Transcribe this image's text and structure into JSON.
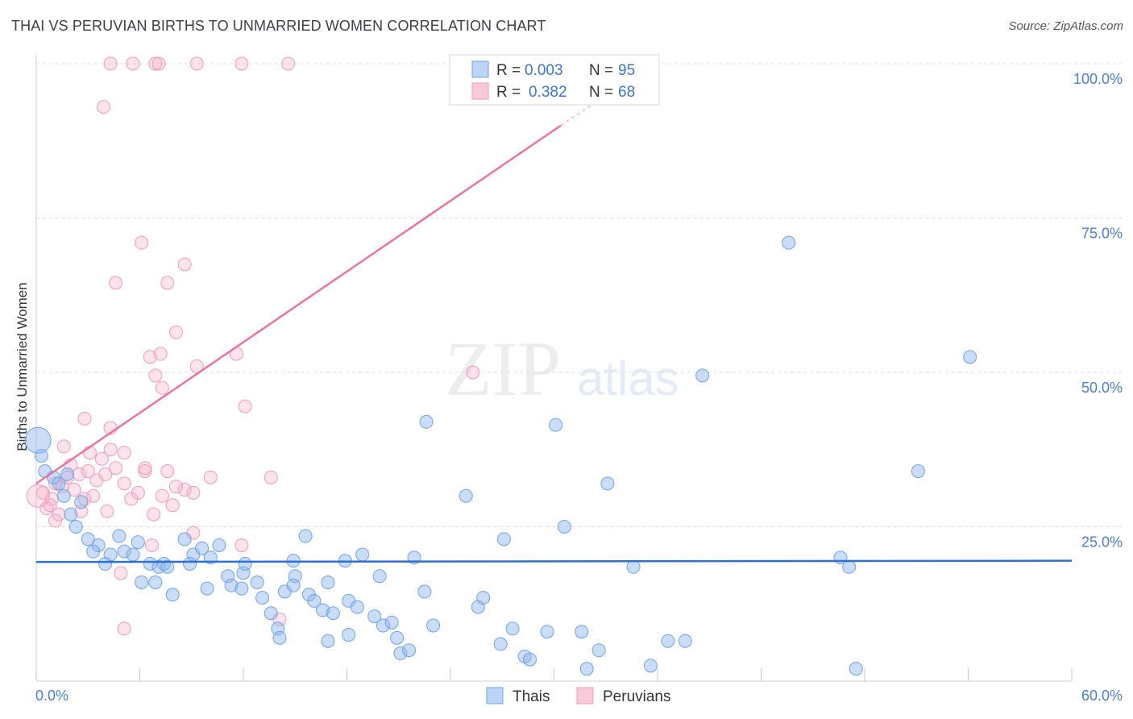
{
  "chart_data": {
    "type": "scatter",
    "title": "THAI VS PERUVIAN BIRTHS TO UNMARRIED WOMEN CORRELATION CHART",
    "source": "Source: ZipAtlas.com",
    "xlabel": "",
    "ylabel": "Births to Unmarried Women",
    "xlim": [
      0,
      60
    ],
    "ylim": [
      0,
      100
    ],
    "x_tick_labels": [
      "0.0%",
      "60.0%"
    ],
    "y_tick_labels": [
      "100.0%",
      "75.0%",
      "50.0%",
      "25.0%"
    ],
    "y_tick_values": [
      100,
      75,
      50,
      25
    ],
    "grid": true,
    "watermark": "ZIPatlas",
    "colors": {
      "thais": "#6fa3e8",
      "peruvians": "#f29ab8",
      "thais_line": "#2f6fcf",
      "peruvians_line": "#e8759c",
      "tick_text": "#4a7fd1"
    },
    "legend": {
      "position": "top-center",
      "entries": [
        {
          "series": "Thais",
          "r_label": "R =",
          "r_value": "0.003",
          "n_label": "N =",
          "n_value": "95"
        },
        {
          "series": "Peruvians",
          "r_label": "R =",
          "r_value": "0.382",
          "n_label": "N =",
          "n_value": "68"
        }
      ]
    },
    "bottom_legend": [
      "Thais",
      "Peruvians"
    ],
    "series": [
      {
        "name": "Thais",
        "trend": {
          "x": [
            0,
            60
          ],
          "y": [
            19.3,
            19.5
          ]
        },
        "points": [
          [
            0.3,
            36.5
          ],
          [
            0.5,
            34.0
          ],
          [
            1.0,
            33.0
          ],
          [
            1.3,
            32.0
          ],
          [
            1.6,
            30.0
          ],
          [
            1.8,
            33.5
          ],
          [
            2.0,
            27.0
          ],
          [
            2.6,
            29.0
          ],
          [
            2.3,
            25.0
          ],
          [
            3.0,
            23.0
          ],
          [
            3.6,
            22.0
          ],
          [
            3.3,
            21.0
          ],
          [
            4.3,
            20.5
          ],
          [
            4.0,
            19.0
          ],
          [
            4.8,
            23.5
          ],
          [
            5.1,
            21.0
          ],
          [
            5.6,
            20.5
          ],
          [
            5.9,
            22.5
          ],
          [
            6.6,
            19.0
          ],
          [
            7.1,
            18.5
          ],
          [
            7.4,
            19.0
          ],
          [
            7.6,
            18.5
          ],
          [
            8.6,
            23.0
          ],
          [
            9.1,
            20.5
          ],
          [
            9.6,
            21.5
          ],
          [
            10.1,
            20.0
          ],
          [
            10.6,
            22.0
          ],
          [
            11.1,
            17.0
          ],
          [
            11.3,
            15.5
          ],
          [
            12.0,
            17.5
          ],
          [
            12.8,
            16.0
          ],
          [
            13.1,
            13.5
          ],
          [
            13.6,
            11.0
          ],
          [
            14.0,
            8.5
          ],
          [
            14.9,
            19.5
          ],
          [
            14.4,
            14.5
          ],
          [
            15.0,
            17.0
          ],
          [
            15.6,
            23.5
          ],
          [
            15.8,
            14.0
          ],
          [
            16.1,
            13.0
          ],
          [
            16.6,
            11.5
          ],
          [
            17.2,
            11.0
          ],
          [
            17.9,
            19.5
          ],
          [
            18.1,
            13.0
          ],
          [
            18.6,
            12.0
          ],
          [
            18.1,
            7.5
          ],
          [
            18.9,
            20.5
          ],
          [
            19.6,
            10.5
          ],
          [
            20.1,
            9.0
          ],
          [
            20.6,
            9.5
          ],
          [
            20.9,
            7.0
          ],
          [
            21.1,
            4.5
          ],
          [
            21.6,
            5.0
          ],
          [
            22.5,
            14.5
          ],
          [
            23.0,
            9.0
          ],
          [
            22.6,
            42.0
          ],
          [
            25.6,
            12.0
          ],
          [
            25.9,
            13.5
          ],
          [
            27.1,
            23.0
          ],
          [
            27.6,
            8.5
          ],
          [
            28.3,
            4.0
          ],
          [
            28.6,
            3.5
          ],
          [
            29.6,
            8.0
          ],
          [
            30.6,
            25.0
          ],
          [
            30.1,
            41.5
          ],
          [
            31.6,
            8.0
          ],
          [
            32.6,
            5.0
          ],
          [
            33.1,
            32.0
          ],
          [
            34.6,
            18.5
          ],
          [
            35.6,
            2.5
          ],
          [
            36.6,
            6.5
          ],
          [
            37.6,
            6.5
          ],
          [
            38.6,
            49.5
          ],
          [
            43.6,
            71.0
          ],
          [
            46.6,
            20.0
          ],
          [
            47.1,
            18.5
          ],
          [
            47.5,
            2.0
          ],
          [
            51.1,
            34.0
          ],
          [
            54.1,
            52.5
          ],
          [
            6.1,
            16.0
          ],
          [
            6.9,
            16.0
          ],
          [
            7.9,
            14.0
          ],
          [
            9.9,
            15.0
          ],
          [
            11.9,
            15.0
          ],
          [
            14.9,
            15.5
          ],
          [
            16.9,
            16.0
          ],
          [
            19.9,
            17.0
          ],
          [
            21.9,
            20.0
          ],
          [
            24.9,
            30.0
          ],
          [
            8.9,
            19.0
          ],
          [
            12.1,
            19.0
          ],
          [
            14.1,
            7.0
          ],
          [
            16.9,
            6.5
          ],
          [
            26.9,
            6.0
          ],
          [
            31.9,
            2.0
          ]
        ]
      },
      {
        "name": "Peruvians",
        "trend": {
          "x": [
            0,
            30.4
          ],
          "y": [
            32.0,
            90.0
          ]
        },
        "trend_dashed": {
          "x": [
            30.4,
            33.1
          ],
          "y": [
            90.0,
            95.0
          ]
        },
        "points": [
          [
            0.4,
            30.5
          ],
          [
            0.6,
            28.0
          ],
          [
            0.9,
            29.5
          ],
          [
            1.1,
            32.0
          ],
          [
            1.3,
            27.0
          ],
          [
            1.5,
            31.5
          ],
          [
            1.8,
            33.0
          ],
          [
            2.0,
            35.0
          ],
          [
            2.2,
            31.0
          ],
          [
            2.5,
            33.5
          ],
          [
            2.8,
            29.5
          ],
          [
            3.0,
            34.0
          ],
          [
            3.3,
            30.0
          ],
          [
            3.5,
            32.5
          ],
          [
            3.8,
            36.0
          ],
          [
            4.0,
            33.5
          ],
          [
            4.3,
            37.5
          ],
          [
            4.6,
            34.5
          ],
          [
            5.1,
            32.0
          ],
          [
            5.5,
            29.5
          ],
          [
            5.9,
            30.5
          ],
          [
            6.3,
            34.0
          ],
          [
            6.8,
            27.0
          ],
          [
            7.3,
            30.0
          ],
          [
            7.9,
            28.5
          ],
          [
            8.6,
            31.0
          ],
          [
            9.1,
            24.0
          ],
          [
            1.6,
            38.0
          ],
          [
            2.8,
            42.5
          ],
          [
            3.1,
            37.0
          ],
          [
            4.3,
            41.0
          ],
          [
            5.1,
            37.0
          ],
          [
            6.3,
            34.5
          ],
          [
            7.6,
            34.0
          ],
          [
            6.6,
            52.5
          ],
          [
            7.2,
            53.0
          ],
          [
            6.9,
            49.5
          ],
          [
            7.3,
            47.5
          ],
          [
            8.1,
            56.5
          ],
          [
            9.3,
            51.0
          ],
          [
            11.6,
            53.0
          ],
          [
            12.1,
            44.5
          ],
          [
            13.6,
            33.0
          ],
          [
            14.1,
            10.0
          ],
          [
            4.6,
            64.5
          ],
          [
            7.6,
            64.5
          ],
          [
            8.6,
            67.5
          ],
          [
            6.1,
            71.0
          ],
          [
            3.9,
            93.0
          ],
          [
            4.3,
            100.0
          ],
          [
            5.6,
            100.0
          ],
          [
            6.9,
            100.0
          ],
          [
            7.1,
            100.0
          ],
          [
            9.3,
            100.0
          ],
          [
            11.9,
            100.0
          ],
          [
            14.6,
            100.0
          ],
          [
            25.3,
            50.0
          ],
          [
            1.1,
            26.0
          ],
          [
            0.8,
            28.5
          ],
          [
            2.6,
            27.5
          ],
          [
            4.1,
            27.5
          ],
          [
            4.9,
            17.5
          ],
          [
            5.1,
            8.5
          ],
          [
            6.7,
            22.0
          ],
          [
            8.1,
            31.5
          ],
          [
            9.1,
            30.5
          ],
          [
            10.1,
            33.0
          ],
          [
            11.9,
            22.0
          ]
        ]
      }
    ]
  }
}
